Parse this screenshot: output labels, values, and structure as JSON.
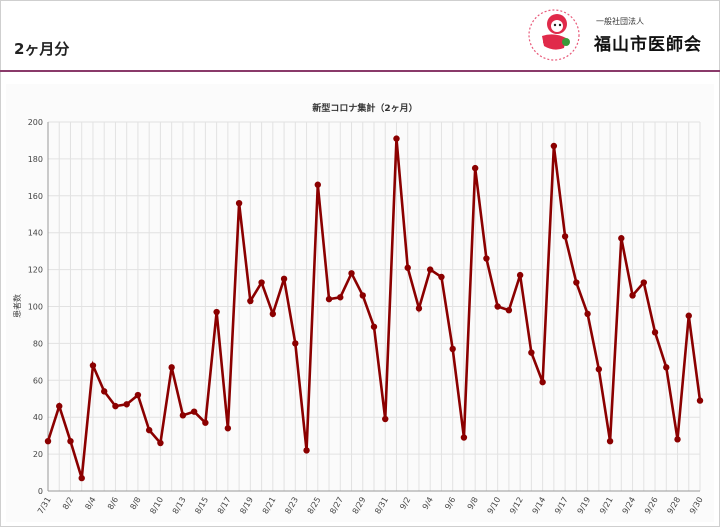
{
  "header": {
    "page_title": "2ヶ月分",
    "org_subtitle": "一般社団法人",
    "org_name": "福山市医師会"
  },
  "colors": {
    "series": "#8b0000",
    "header_rule": "#8a3a6a",
    "grid": "#e2e2e2"
  },
  "chart_data": {
    "type": "line",
    "title": "新型コロナ集計（2ヶ月）",
    "xlabel": "",
    "ylabel": "患者数",
    "ylim": [
      0,
      200
    ],
    "yticks": [
      0,
      20,
      40,
      60,
      80,
      100,
      120,
      140,
      160,
      180,
      200
    ],
    "grid": true,
    "legend": "none",
    "x": [
      "7/31",
      "8/1",
      "8/2",
      "8/3",
      "8/4",
      "8/5",
      "8/6",
      "8/7",
      "8/8",
      "8/9",
      "8/10",
      "8/11",
      "8/13",
      "8/14",
      "8/15",
      "8/16",
      "8/17",
      "8/18",
      "8/19",
      "8/20",
      "8/21",
      "8/22",
      "8/23",
      "8/24",
      "8/25",
      "8/26",
      "8/27",
      "8/28",
      "8/29",
      "8/30",
      "8/31",
      "9/1",
      "9/2",
      "9/3",
      "9/4",
      "9/5",
      "9/6",
      "9/7",
      "9/8",
      "9/9",
      "9/10",
      "9/11",
      "9/12",
      "9/13",
      "9/14",
      "9/16",
      "9/17",
      "9/18",
      "9/19",
      "9/20",
      "9/21",
      "9/22",
      "9/24",
      "9/25",
      "9/26",
      "9/27",
      "9/28",
      "9/29",
      "9/30"
    ],
    "xtick_labels": [
      "7/31",
      "8/2",
      "8/4",
      "8/6",
      "8/8",
      "8/10",
      "8/13",
      "8/15",
      "8/17",
      "8/19",
      "8/21",
      "8/23",
      "8/25",
      "8/27",
      "8/29",
      "8/31",
      "9/2",
      "9/4",
      "9/6",
      "9/8",
      "9/10",
      "9/12",
      "9/14",
      "9/17",
      "9/19",
      "9/21",
      "9/24",
      "9/26",
      "9/28",
      "9/30"
    ],
    "series": [
      {
        "values": [
          27,
          46,
          27,
          7,
          68,
          54,
          46,
          47,
          52,
          33,
          26,
          67,
          41,
          43,
          37,
          97,
          34,
          156,
          103,
          113,
          96,
          115,
          80,
          22,
          166,
          104,
          105,
          118,
          106,
          89,
          39,
          191,
          121,
          99,
          120,
          116,
          77,
          29,
          175,
          126,
          100,
          98,
          117,
          75,
          59,
          187,
          138,
          113,
          96,
          66,
          27,
          137,
          106,
          113,
          86,
          67,
          28,
          95,
          49
        ]
      }
    ]
  }
}
